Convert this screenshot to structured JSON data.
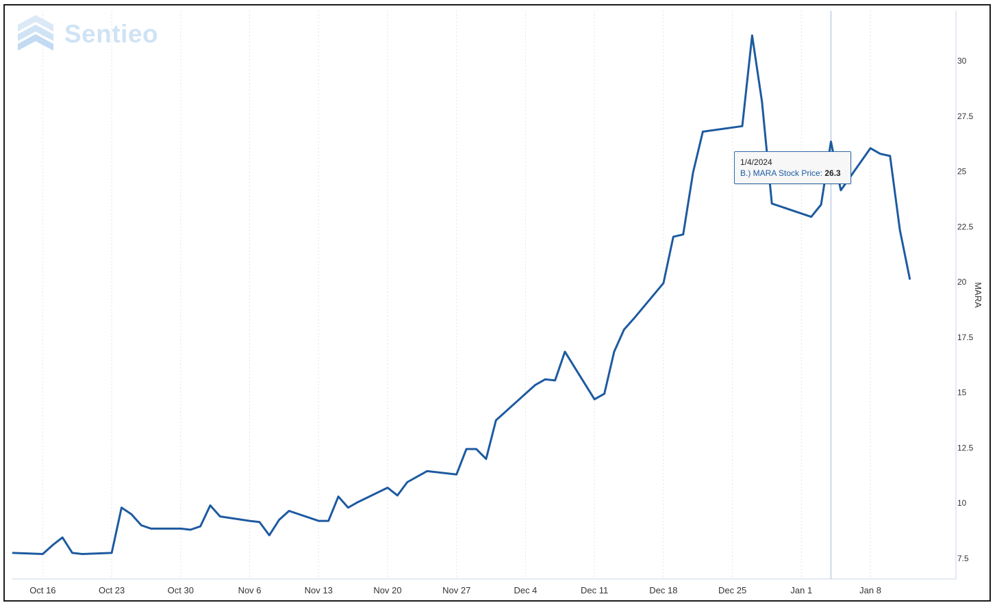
{
  "logo": {
    "text": "Sentieo",
    "icon": "sentieo-chevrons-icon"
  },
  "tooltip": {
    "date": "1/4/2024",
    "label": "B.) MARA Stock Price:",
    "value": "26.3"
  },
  "colors": {
    "line": "#1d5aa0",
    "crosshair": "#b9cfe6",
    "grid": "#e4e4e4",
    "axis": "#c8d6e8",
    "logo": "#cfe3f5"
  },
  "chart_data": {
    "type": "line",
    "ylabel": "MARA",
    "ylim": [
      6.5,
      32.5
    ],
    "yticks": [
      "7.5",
      "10",
      "12.5",
      "15",
      "17.5",
      "20",
      "22.5",
      "25",
      "27.5",
      "30"
    ],
    "xticks": [
      "Oct 16",
      "Oct 23",
      "Oct 30",
      "Nov 6",
      "Nov 13",
      "Nov 20",
      "Nov 27",
      "Dec 4",
      "Dec 11",
      "Dec 18",
      "Dec 25",
      "Jan 1",
      "Jan 8"
    ],
    "xlim": [
      "2023-10-15",
      "2024-01-13"
    ],
    "grid": true,
    "legend": "none",
    "highlight": "2024-01-04",
    "series": [
      {
        "name": "B.) MARA Stock Price",
        "x": [
          "2023-10-13",
          "2023-10-16",
          "2023-10-17",
          "2023-10-18",
          "2023-10-19",
          "2023-10-20",
          "2023-10-23",
          "2023-10-24",
          "2023-10-25",
          "2023-10-26",
          "2023-10-27",
          "2023-10-30",
          "2023-10-31",
          "2023-11-01",
          "2023-11-02",
          "2023-11-03",
          "2023-11-06",
          "2023-11-07",
          "2023-11-08",
          "2023-11-09",
          "2023-11-10",
          "2023-11-13",
          "2023-11-14",
          "2023-11-15",
          "2023-11-16",
          "2023-11-17",
          "2023-11-20",
          "2023-11-21",
          "2023-11-22",
          "2023-11-24",
          "2023-11-27",
          "2023-11-28",
          "2023-11-29",
          "2023-11-30",
          "2023-12-01",
          "2023-12-04",
          "2023-12-05",
          "2023-12-06",
          "2023-12-07",
          "2023-12-08",
          "2023-12-11",
          "2023-12-12",
          "2023-12-13",
          "2023-12-14",
          "2023-12-15",
          "2023-12-18",
          "2023-12-19",
          "2023-12-20",
          "2023-12-21",
          "2023-12-22",
          "2023-12-26",
          "2023-12-27",
          "2023-12-28",
          "2023-12-29",
          "2024-01-02",
          "2024-01-03",
          "2024-01-04",
          "2024-01-05",
          "2024-01-08",
          "2024-01-09",
          "2024-01-10",
          "2024-01-11",
          "2024-01-12"
        ],
        "y": [
          7.75,
          7.7,
          8.1,
          8.45,
          7.75,
          7.7,
          7.75,
          9.8,
          9.5,
          9.0,
          8.85,
          8.85,
          8.8,
          8.95,
          9.9,
          9.4,
          9.2,
          9.15,
          8.55,
          9.25,
          9.65,
          9.2,
          9.2,
          10.3,
          9.8,
          10.05,
          10.7,
          10.35,
          10.95,
          11.45,
          11.3,
          12.45,
          12.45,
          12.0,
          13.75,
          14.95,
          15.35,
          15.6,
          15.55,
          16.85,
          14.7,
          14.95,
          16.85,
          17.85,
          18.35,
          19.95,
          22.05,
          22.15,
          24.95,
          26.8,
          27.05,
          31.15,
          28.15,
          23.55,
          22.95,
          23.5,
          26.35,
          24.15,
          26.05,
          25.8,
          25.7,
          22.35,
          20.15
        ]
      }
    ]
  }
}
